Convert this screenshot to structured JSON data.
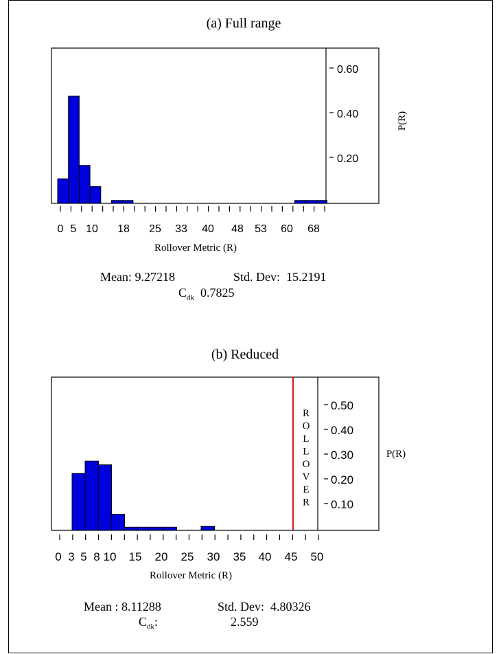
{
  "chart_data": [
    {
      "type": "bar",
      "title": "(a)   Full range",
      "xlabel": "Rollover Metric (R)",
      "ylabel": "P(R)",
      "xtick_labels": [
        "0",
        "5",
        "10",
        "18",
        "25",
        "33",
        "40",
        "48",
        "53",
        "60",
        "68"
      ],
      "ytick_labels": [
        "0.60",
        "0.40",
        "0.20"
      ],
      "ylim": [
        0,
        0.67
      ],
      "bar_color": "#0000dd",
      "bins": [
        {
          "start": 0,
          "end": 2,
          "value": 0.11
        },
        {
          "start": 2,
          "end": 4,
          "value": 0.48
        },
        {
          "start": 4,
          "end": 6,
          "value": 0.17
        },
        {
          "start": 6,
          "end": 8,
          "value": 0.075
        },
        {
          "start": 10,
          "end": 12,
          "value": 0.013
        },
        {
          "start": 12,
          "end": 14,
          "value": 0.013
        },
        {
          "start": 44,
          "end": 46,
          "value": 0.013
        },
        {
          "start": 46,
          "end": 48,
          "value": 0.013
        },
        {
          "start": 48,
          "end": 50,
          "value": 0.013
        }
      ],
      "stats": {
        "mean_label": "Mean:",
        "mean": "9.27218",
        "std_label": "Std. Dev:",
        "std": "15.2191",
        "cdk_label_main": "C",
        "cdk_label_sub": "dk",
        "cdk": "0.7825"
      }
    },
    {
      "type": "bar",
      "title": "(b)   Reduced",
      "xlabel": "Rollover Metric (R)",
      "ylabel": "P(R)",
      "xtick_labels": [
        "0",
        "3",
        "5",
        "8",
        "10",
        "15",
        "20",
        "25",
        "30",
        "35",
        "40",
        "45",
        "50"
      ],
      "ytick_labels": [
        "0.50",
        "0.40",
        "0.30",
        "0.20",
        "0.10"
      ],
      "ylim": [
        0,
        0.55
      ],
      "bar_color": "#0000dd",
      "rollover_label": "ROLLOVER",
      "rollover_color": "#cc0000",
      "rollover_x": 45,
      "bins": [
        {
          "start": 2,
          "end": 4,
          "value": 0.23
        },
        {
          "start": 4,
          "end": 6,
          "value": 0.28
        },
        {
          "start": 6,
          "end": 8,
          "value": 0.265
        },
        {
          "start": 8,
          "end": 10,
          "value": 0.065
        },
        {
          "start": 10,
          "end": 12,
          "value": 0.013
        },
        {
          "start": 12,
          "end": 14,
          "value": 0.013
        },
        {
          "start": 14,
          "end": 16,
          "value": 0.013
        },
        {
          "start": 16,
          "end": 18,
          "value": 0.013
        },
        {
          "start": 20,
          "end": 22,
          "value": 0.016
        }
      ],
      "stats": {
        "mean_label": "Mean :",
        "mean": "8.11288",
        "std_label": "Std. Dev:",
        "std": "4.80326",
        "cdk_label_main": "C",
        "cdk_label_sub": "dk",
        "cdk_colon": ":",
        "cdk": "2.559"
      }
    }
  ]
}
